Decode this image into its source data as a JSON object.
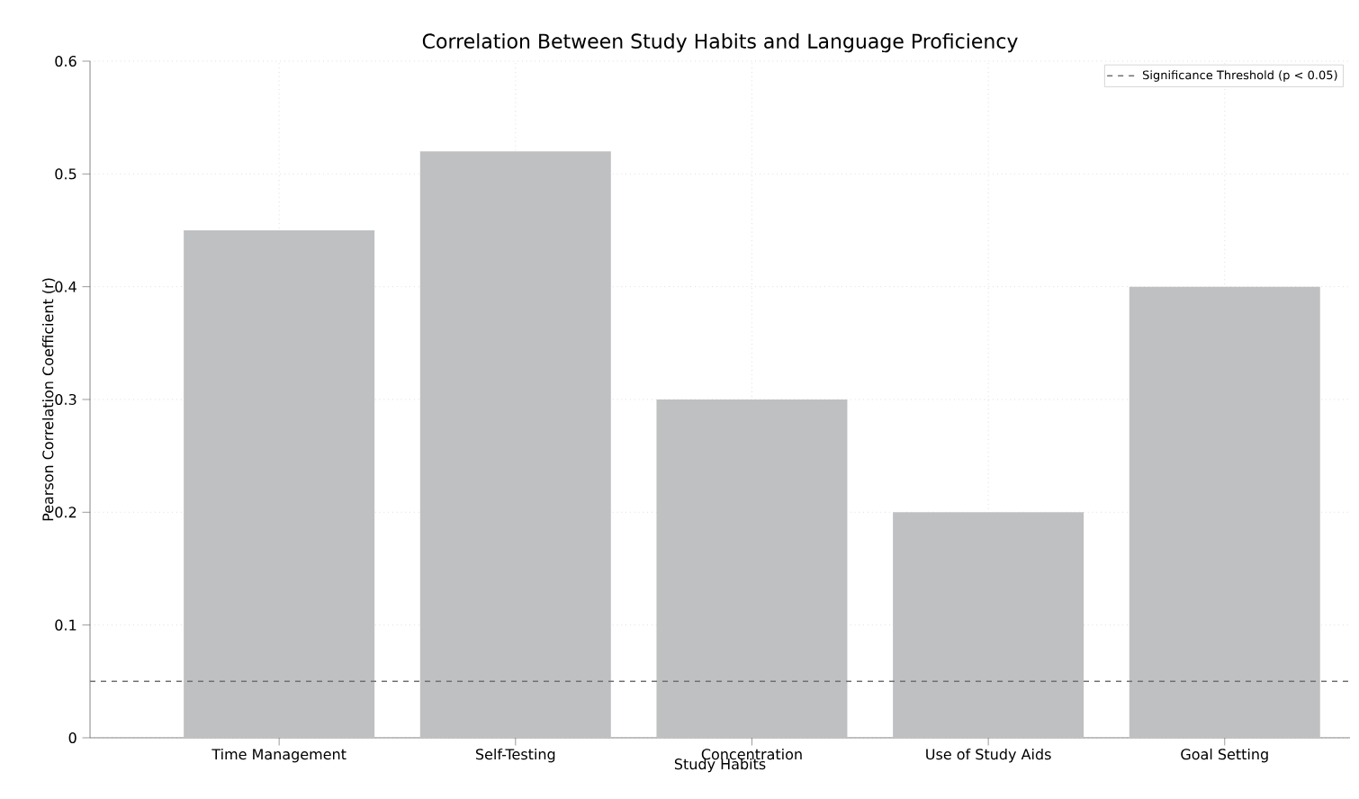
{
  "chart_data": {
    "type": "bar",
    "title": "Correlation Between Study Habits and Language Proficiency",
    "xlabel": "Study Habits",
    "ylabel": "Pearson Correlation Coefficient (r)",
    "categories": [
      "Time Management",
      "Self-Testing",
      "Concentration",
      "Use of Study Aids",
      "Goal Setting"
    ],
    "values": [
      0.45,
      0.52,
      0.3,
      0.2,
      0.4
    ],
    "color": "#bfc0c2",
    "ylim": [
      0,
      0.6
    ],
    "yticks": [
      0,
      0.1,
      0.2,
      0.3,
      0.4,
      0.5,
      0.6
    ],
    "grid": true,
    "legend": "top right",
    "ref_lines": [
      {
        "axis": "y",
        "value": 0.05,
        "label": "Significance Threshold (p < 0.05)",
        "color": "#707070",
        "line_style": "dashed"
      }
    ]
  }
}
